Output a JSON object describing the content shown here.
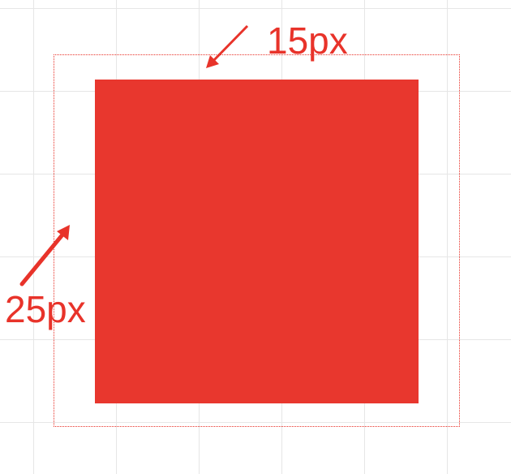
{
  "annotations": {
    "top_label": "15px",
    "left_label": "25px"
  },
  "colors": {
    "accent": "#e8332a",
    "inner_fill": "#e8332a",
    "grid_line": "#e6e6e6",
    "background": "#ffffff"
  },
  "icons": {
    "top_arrow": "arrow-down-left-icon",
    "left_arrow": "arrow-up-right-icon"
  }
}
